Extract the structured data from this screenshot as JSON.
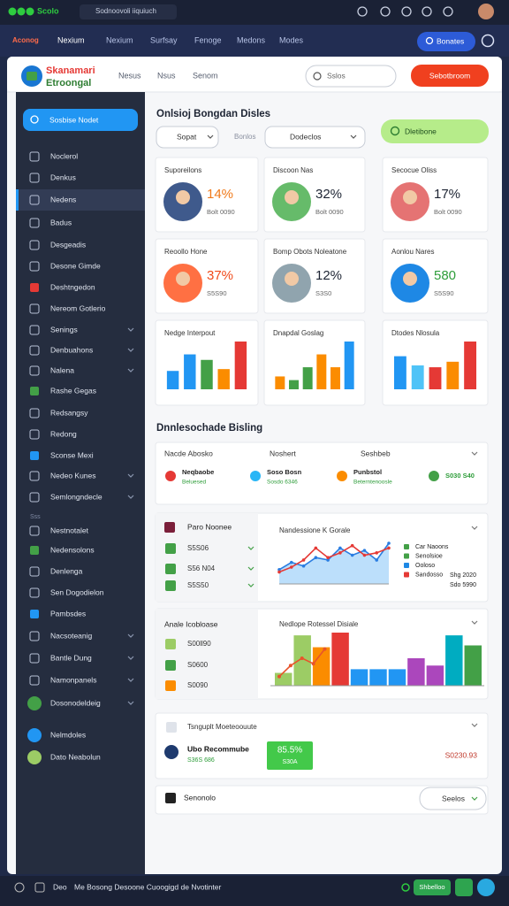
{
  "browser": {
    "logo": "Scolo",
    "tab": "Sodnoovoli iiquiuch"
  },
  "topnav": {
    "brand": "Aconog",
    "items": [
      "Nexium",
      "Nexium",
      "Surfsay",
      "Fenoge",
      "Medons",
      "Modes"
    ],
    "button": "Bonates"
  },
  "header": {
    "brand": "Skanamari",
    "brand_sub": "Etroongal",
    "links": [
      "Nesus",
      "Nsus",
      "Senom"
    ],
    "search": "Sslos",
    "button": "Sebotbroom"
  },
  "sidebar": {
    "search": "Sosbise Nodet",
    "section": "Sss",
    "items": [
      "Noclerol",
      "Denkus",
      "Nedens",
      "Badus",
      "Desgeadis",
      "Desone Gimde",
      "Deshtngedon",
      "Nereom Gotlerio",
      "Senings",
      "Denbuahons",
      "Nalena",
      "Rashe Gegas",
      "Redsangsy",
      "Redong",
      "Sconse Mexi",
      "Nedeo Kunes",
      "Semlongndecle",
      "Nestnotalet",
      "Nedensolons",
      "Denlenga",
      "Sen Dogodielon",
      "Pambsdes",
      "Nacsoteanig",
      "Bantle Dung",
      "Namonpanels",
      "Dosonodeldeig",
      "Nelmdoles",
      "Dato Neabolun"
    ]
  },
  "filters": {
    "title": "Onlsioj Bongdan Disles",
    "select1": "Sopat",
    "label": "Bonlos",
    "select2": "Dodeclos",
    "button": "Dletibone"
  },
  "stat_cards": [
    {
      "title": "Suporeilons",
      "value": "14%",
      "sub": "Bolt 0090"
    },
    {
      "title": "Discoon Nas",
      "value": "32%",
      "sub": "Bolt 0090"
    },
    {
      "title": "Secocue Oliss",
      "value": "17%",
      "sub": "Bolt 0090"
    },
    {
      "title": "Reoollo Hone",
      "value": "37%",
      "sub": "S5S90"
    },
    {
      "title": "Bomp Obots Noleatone",
      "value": "12%",
      "sub": "S3S0"
    },
    {
      "title": "Aonlou Nares",
      "value": "580",
      "sub": "S5S90"
    }
  ],
  "mini_charts": [
    {
      "title": "Nedge Interpout",
      "values": [
        20,
        38,
        32,
        22,
        52
      ],
      "colors": [
        "#2196f3",
        "#2196f3",
        "#43a047",
        "#fb8c00",
        "#e53935"
      ]
    },
    {
      "title": "Dnapdal Goslag",
      "values": [
        14,
        10,
        24,
        38,
        24,
        52
      ],
      "colors": [
        "#fb8c00",
        "#43a047",
        "#43a047",
        "#fb8c00",
        "#fb8c00",
        "#2196f3"
      ]
    },
    {
      "title": "Dtodes Nlosula",
      "values": [
        36,
        26,
        24,
        30,
        52
      ],
      "colors": [
        "#2196f3",
        "#4fc3f7",
        "#e53935",
        "#fb8c00",
        "#e53935"
      ]
    }
  ],
  "overview": {
    "title": "Dnnlesochade Bisling",
    "summary": {
      "headers": [
        "Nacde Abosko",
        "Noshert",
        "Seshbeb"
      ],
      "items": [
        {
          "title": "Neqbaobe",
          "sub": "Beluesed"
        },
        {
          "title": "Soso Bosn",
          "sub": "Sosdo 6346"
        },
        {
          "title": "Punbstol",
          "sub": "Beterntenoosle"
        },
        {
          "title": "S030 S40"
        }
      ]
    },
    "trend": {
      "title": "Paro Noonee",
      "items": [
        "S5S06",
        "S56 N04",
        "S5S50"
      ],
      "chart_title": "Nandessione K Gorale",
      "series": [
        {
          "color": "#2a7de1",
          "values": [
            12,
            18,
            15,
            22,
            20,
            30,
            24,
            28,
            20,
            34
          ]
        },
        {
          "color": "#e53935",
          "values": [
            10,
            14,
            20,
            30,
            22,
            26,
            32,
            24,
            26,
            30
          ]
        }
      ],
      "legend": [
        "Car Naoons",
        "Senolsioe",
        "Ooloso",
        "Sandosso"
      ],
      "legend_values": [
        "Shg 2020",
        "Sdo 5990"
      ]
    },
    "breakdown": {
      "title": "Anale Icobloase",
      "items": [
        "S00ll90",
        "S0600",
        "S0090"
      ],
      "chart_title": "Nedlope Rotessel Disiale",
      "bars": {
        "values": [
          14,
          55,
          42,
          58,
          18,
          18,
          18,
          30,
          22,
          55,
          44
        ],
        "colors": [
          "#9ccc65",
          "#9ccc65",
          "#fb8c00",
          "#e53935",
          "#2196f3",
          "#2196f3",
          "#2196f3",
          "#ab47bc",
          "#ab47bc",
          "#00acc1",
          "#43a047"
        ]
      },
      "line": {
        "color": "#e8532b",
        "values": [
          10,
          22,
          30,
          24,
          40
        ]
      }
    },
    "promo": {
      "title": "Tsnguplt Moeteoouute",
      "name": "Ubo Recommube",
      "sub": "S36S 686",
      "badge": "85.5%",
      "badge_sub": "S30A",
      "amount": "S0230.93"
    },
    "footer_card": {
      "title": "Senonolo",
      "button": "Seelos"
    }
  },
  "bottom_bar": {
    "label": "Deo",
    "text": "Me Bosong Desoone Cuoogigd de Nvotinter",
    "button": "Shbelloo"
  }
}
